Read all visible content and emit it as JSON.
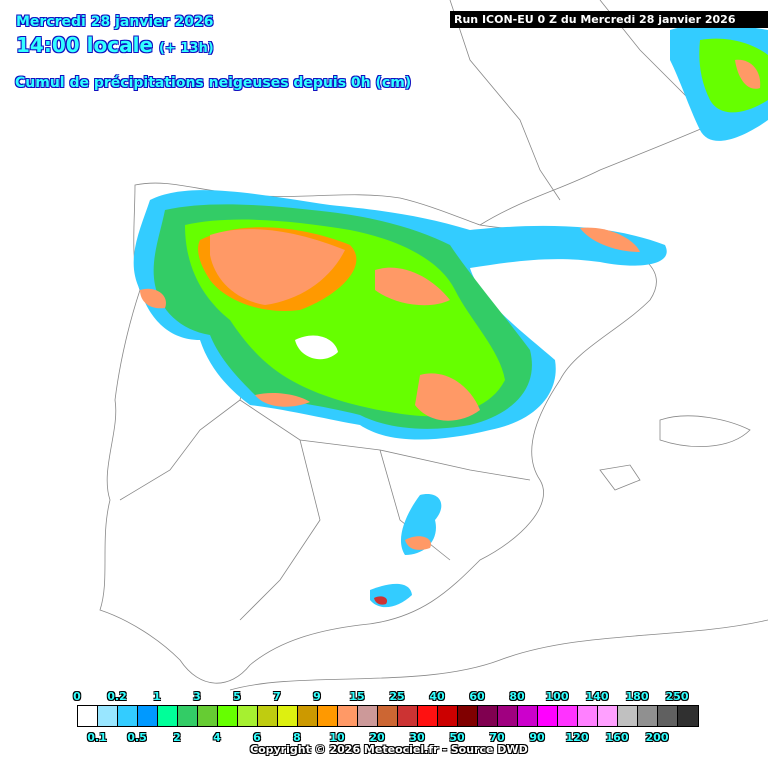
{
  "header": {
    "date": "Mercredi 28 janvier 2026",
    "time": "14:00 locale",
    "lead": "(+ 13h)",
    "subtitle": "Cumul de précipitations neigeuses depuis 0h (cm)",
    "run": "Run ICON-EU 0 Z du Mercredi 28 janvier 2026"
  },
  "legend": {
    "colors": [
      "#ffffff",
      "#99e6ff",
      "#33ccff",
      "#0099ff",
      "#00ff99",
      "#33cc66",
      "#66cc33",
      "#66ff00",
      "#a6f030",
      "#bfcc10",
      "#ddf010",
      "#cc9900",
      "#ff9900",
      "#ff9966",
      "#cc9999",
      "#cc6633",
      "#cc3333",
      "#ff1111",
      "#cc0000",
      "#800000",
      "#800050",
      "#a00080",
      "#cc00cc",
      "#ff00ff",
      "#ff33ff",
      "#ff80ff",
      "#ffa0ff",
      "#c0c0c0",
      "#909090",
      "#606060",
      "#303030"
    ],
    "top_labels": [
      "0",
      "0.2",
      "1",
      "3",
      "5",
      "7",
      "9",
      "15",
      "25",
      "40",
      "60",
      "80",
      "100",
      "140",
      "180",
      "250"
    ],
    "bottom_labels": [
      "0.1",
      "0.5",
      "2",
      "4",
      "6",
      "8",
      "10",
      "20",
      "30",
      "50",
      "70",
      "90",
      "120",
      "160",
      "200"
    ]
  },
  "footer": {
    "copyright": "Copyright © 2026 Meteociel.fr - Source DWD"
  }
}
